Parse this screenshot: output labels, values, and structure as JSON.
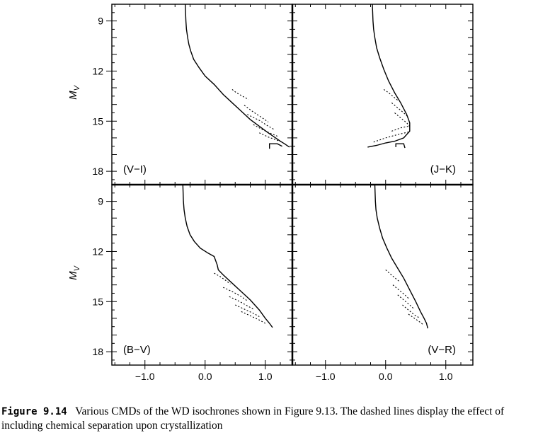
{
  "chart_data": [
    {
      "type": "line",
      "panel_label": "(V−I)",
      "ylabel": "M_V",
      "ylim": [
        8,
        18.8
      ],
      "xlim": [
        -1.55,
        1.45
      ],
      "yticks": [
        9,
        12,
        15,
        18
      ],
      "xticks": [],
      "series": [
        {
          "style": "solid",
          "x": [
            -0.33,
            -0.32,
            -0.31,
            -0.29,
            -0.27,
            -0.24,
            -0.19,
            -0.1,
            0.0,
            0.15,
            0.3,
            0.45,
            0.6,
            0.75,
            0.9,
            1.05,
            1.15,
            1.25,
            1.32,
            1.38,
            1.4
          ],
          "y": [
            8.0,
            9.0,
            9.5,
            10.0,
            10.4,
            10.8,
            11.3,
            11.8,
            12.3,
            12.8,
            13.4,
            13.9,
            14.4,
            14.9,
            15.3,
            15.7,
            15.95,
            16.2,
            16.35,
            16.5,
            16.55
          ]
        },
        {
          "style": "dashed",
          "x": [
            0.45,
            0.52,
            0.62,
            0.72
          ],
          "y": [
            13.1,
            13.3,
            13.5,
            13.7
          ]
        },
        {
          "style": "dashed",
          "x": [
            0.65,
            0.8,
            0.95,
            1.05
          ],
          "y": [
            14.05,
            14.45,
            14.8,
            15.05
          ]
        },
        {
          "style": "dashed",
          "x": [
            0.7,
            0.9,
            1.05,
            1.15
          ],
          "y": [
            14.6,
            14.95,
            15.3,
            15.5
          ]
        },
        {
          "style": "dashed",
          "x": [
            0.8,
            0.95,
            1.1,
            1.2
          ],
          "y": [
            15.2,
            15.5,
            15.75,
            15.9
          ]
        },
        {
          "style": "dashed",
          "x": [
            0.9,
            1.05,
            1.2,
            1.28
          ],
          "y": [
            15.7,
            15.95,
            16.15,
            16.25
          ]
        },
        {
          "style": "solid",
          "x": [
            1.07,
            1.07,
            1.2,
            1.28
          ],
          "y": [
            16.65,
            16.35,
            16.35,
            16.5
          ]
        }
      ]
    },
    {
      "type": "line",
      "panel_label": "(J−K)",
      "ylabel": "",
      "ylim": [
        8,
        18.8
      ],
      "xlim": [
        -1.55,
        1.45
      ],
      "yticks": [
        9,
        12,
        15,
        18
      ],
      "xticks": [],
      "series": [
        {
          "style": "solid",
          "x": [
            -0.22,
            -0.21,
            -0.2,
            -0.18,
            -0.15,
            -0.1,
            -0.03,
            0.05,
            0.15,
            0.25,
            0.35,
            0.4,
            0.4,
            0.3,
            0.15,
            0.0,
            -0.15,
            -0.3
          ],
          "y": [
            8.0,
            9.0,
            9.5,
            10.0,
            10.6,
            11.2,
            11.9,
            12.6,
            13.3,
            13.9,
            14.6,
            15.1,
            15.6,
            16.0,
            16.2,
            16.3,
            16.45,
            16.55
          ]
        },
        {
          "style": "dashed",
          "x": [
            -0.03,
            0.05,
            0.15,
            0.22
          ],
          "y": [
            13.1,
            13.3,
            13.6,
            13.8
          ]
        },
        {
          "style": "dashed",
          "x": [
            0.1,
            0.2,
            0.3,
            0.36
          ],
          "y": [
            13.9,
            14.2,
            14.5,
            14.7
          ]
        },
        {
          "style": "dashed",
          "x": [
            0.15,
            0.25,
            0.35,
            0.4
          ],
          "y": [
            14.5,
            14.8,
            15.1,
            15.3
          ]
        },
        {
          "style": "dashed",
          "x": [
            0.1,
            0.25,
            0.38
          ],
          "y": [
            15.6,
            15.4,
            15.3
          ]
        },
        {
          "style": "dashed",
          "x": [
            -0.2,
            0.0,
            0.2,
            0.38
          ],
          "y": [
            16.25,
            16.0,
            15.8,
            15.65
          ]
        },
        {
          "style": "solid",
          "x": [
            0.17,
            0.17,
            0.3,
            0.32
          ],
          "y": [
            16.55,
            16.35,
            16.35,
            16.6
          ]
        }
      ]
    },
    {
      "type": "line",
      "panel_label": "(B−V)",
      "ylabel": "M_V",
      "ylim": [
        8,
        18.8
      ],
      "xlim": [
        -1.55,
        1.45
      ],
      "yticks": [
        9,
        12,
        15,
        18
      ],
      "xticks": [
        -1.0,
        0.0,
        1.0
      ],
      "xtick_labels": [
        "−1.0",
        "0.0",
        "1.0"
      ],
      "series": [
        {
          "style": "solid",
          "x": [
            -0.37,
            -0.36,
            -0.35,
            -0.33,
            -0.3,
            -0.25,
            -0.18,
            -0.08,
            0.05,
            0.15,
            0.2,
            0.22,
            0.3,
            0.45,
            0.6,
            0.75,
            0.9,
            1.0,
            1.07,
            1.12
          ],
          "y": [
            8.0,
            9.0,
            9.5,
            10.0,
            10.5,
            11.0,
            11.4,
            11.8,
            12.1,
            12.3,
            12.8,
            13.1,
            13.4,
            13.9,
            14.4,
            14.9,
            15.5,
            16.0,
            16.3,
            16.55
          ]
        },
        {
          "style": "dashed",
          "x": [
            0.15,
            0.25,
            0.35,
            0.42
          ],
          "y": [
            13.3,
            13.5,
            13.75,
            13.95
          ]
        },
        {
          "style": "dashed",
          "x": [
            0.3,
            0.45,
            0.6,
            0.7
          ],
          "y": [
            14.15,
            14.4,
            14.7,
            14.95
          ]
        },
        {
          "style": "dashed",
          "x": [
            0.4,
            0.55,
            0.7,
            0.8
          ],
          "y": [
            14.7,
            14.95,
            15.25,
            15.45
          ]
        },
        {
          "style": "dashed",
          "x": [
            0.5,
            0.65,
            0.8,
            0.9
          ],
          "y": [
            15.2,
            15.45,
            15.7,
            15.9
          ]
        },
        {
          "style": "dashed",
          "x": [
            0.6,
            0.75,
            0.9,
            1.0
          ],
          "y": [
            15.6,
            15.85,
            16.1,
            16.3
          ]
        }
      ]
    },
    {
      "type": "line",
      "panel_label": "(V−R)",
      "ylabel": "",
      "ylim": [
        8,
        18.8
      ],
      "xlim": [
        -1.55,
        1.45
      ],
      "yticks": [
        9,
        12,
        15,
        18
      ],
      "xticks": [
        -1.0,
        0.0,
        1.0
      ],
      "xtick_labels": [
        "−1.0",
        "0.0",
        "1.0"
      ],
      "series": [
        {
          "style": "solid",
          "x": [
            -0.18,
            -0.17,
            -0.16,
            -0.14,
            -0.1,
            -0.05,
            0.02,
            0.1,
            0.2,
            0.3,
            0.4,
            0.5,
            0.58,
            0.64,
            0.68,
            0.7
          ],
          "y": [
            8.0,
            9.0,
            9.5,
            10.0,
            10.6,
            11.2,
            11.8,
            12.4,
            13.0,
            13.6,
            14.3,
            15.0,
            15.6,
            16.0,
            16.3,
            16.6
          ]
        },
        {
          "style": "dashed",
          "x": [
            0.0,
            0.08,
            0.16,
            0.23
          ],
          "y": [
            13.1,
            13.35,
            13.6,
            13.8
          ]
        },
        {
          "style": "dashed",
          "x": [
            0.12,
            0.22,
            0.32,
            0.38
          ],
          "y": [
            14.0,
            14.3,
            14.6,
            14.8
          ]
        },
        {
          "style": "dashed",
          "x": [
            0.2,
            0.3,
            0.4,
            0.46
          ],
          "y": [
            14.6,
            14.9,
            15.2,
            15.4
          ]
        },
        {
          "style": "dashed",
          "x": [
            0.28,
            0.38,
            0.48,
            0.55
          ],
          "y": [
            15.2,
            15.5,
            15.8,
            15.95
          ]
        },
        {
          "style": "dashed",
          "x": [
            0.38,
            0.48,
            0.58,
            0.63
          ],
          "y": [
            15.75,
            16.0,
            16.25,
            16.4
          ]
        }
      ]
    }
  ],
  "caption": {
    "figure_number": "Figure 9.14",
    "text": "Various CMDs of the WD isochrones shown in Figure 9.13. The dashed lines display the effect of including chemical separation upon crystallization"
  }
}
